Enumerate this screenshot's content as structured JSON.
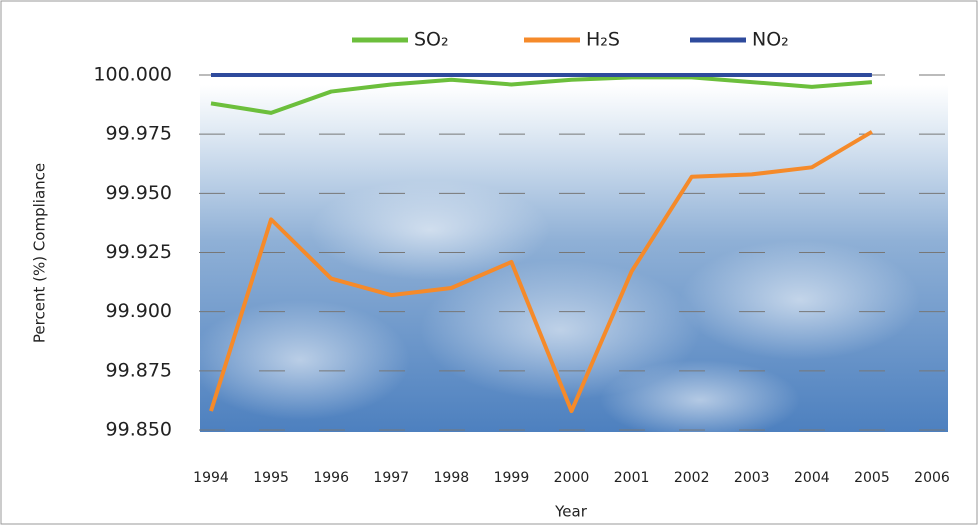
{
  "chart_data": {
    "type": "line",
    "x_label": "Year",
    "y_label": "Percent (%) Compliance",
    "categories": [
      "1994",
      "1995",
      "1996",
      "1997",
      "1998",
      "1999",
      "2000",
      "2001",
      "2002",
      "2003",
      "2004",
      "2005",
      "2006"
    ],
    "series": [
      {
        "name": "SO₂",
        "color": "#6cbf3c",
        "values": [
          99.988,
          99.984,
          99.993,
          99.996,
          99.998,
          99.996,
          99.998,
          99.999,
          99.999,
          99.997,
          99.995,
          99.997,
          null
        ]
      },
      {
        "name": "H₂S",
        "color": "#f58a2a",
        "values": [
          99.858,
          99.939,
          99.914,
          99.907,
          99.91,
          99.921,
          99.858,
          99.917,
          99.957,
          99.958,
          99.961,
          99.976,
          null
        ]
      },
      {
        "name": "NO₂",
        "color": "#2e4a9c",
        "values": [
          100,
          100,
          100,
          100,
          100,
          100,
          100,
          100,
          100,
          100,
          100,
          100,
          null
        ]
      }
    ],
    "ylim": [
      99.85,
      100
    ],
    "yticks": [
      {
        "value": 99.85,
        "label": "99.850"
      },
      {
        "value": 99.875,
        "label": "99.875"
      },
      {
        "value": 99.9,
        "label": "99.900"
      },
      {
        "value": 99.925,
        "label": "99.925"
      },
      {
        "value": 99.95,
        "label": "99.950"
      },
      {
        "value": 99.975,
        "label": "99.975"
      },
      {
        "value": 100,
        "label": "100.000"
      }
    ],
    "grid": true,
    "legend": "top"
  }
}
